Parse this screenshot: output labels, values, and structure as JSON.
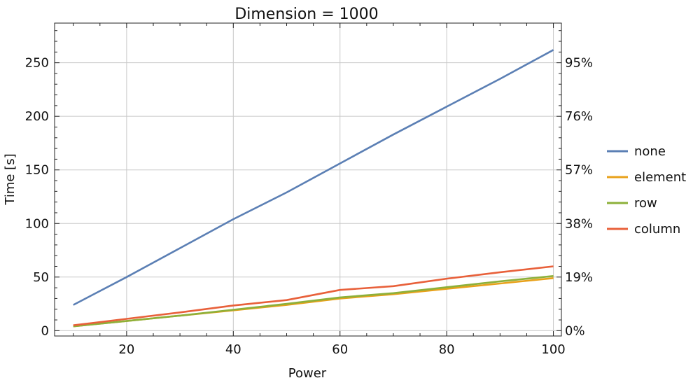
{
  "chart_data": {
    "type": "line",
    "title": "Dimension  = 1000",
    "xlabel": "Power",
    "ylabel": "Time [s]",
    "xlim": [
      6.5,
      101.5
    ],
    "ylim": [
      -5,
      287
    ],
    "x_ticks": [
      20,
      40,
      60,
      80,
      100
    ],
    "y_ticks": [
      0,
      50,
      100,
      150,
      200,
      250
    ],
    "x_tick_labels": [
      "20",
      "40",
      "60",
      "80",
      "100"
    ],
    "y_tick_labels": [
      "0",
      "50",
      "100",
      "150",
      "200",
      "250"
    ],
    "right_axis": {
      "label_positions": [
        0,
        50,
        100,
        150,
        200,
        250
      ],
      "labels": [
        "0%",
        "19%",
        "38%",
        "57%",
        "76%",
        "95%"
      ]
    },
    "grid": true,
    "legend_position": "right",
    "x": [
      10,
      20,
      30,
      40,
      50,
      60,
      70,
      80,
      90,
      100
    ],
    "series": [
      {
        "name": "none",
        "color": "#5b7fb4",
        "values": [
          24,
          50,
          77,
          104,
          129,
          156,
          183,
          209,
          235,
          262
        ]
      },
      {
        "name": "element",
        "color": "#e8a11a",
        "values": [
          4,
          9,
          14,
          19,
          24,
          30,
          34,
          39,
          44,
          49
        ]
      },
      {
        "name": "row",
        "color": "#8db03a",
        "values": [
          4,
          9,
          14,
          19.5,
          25,
          31,
          35,
          40.5,
          46,
          51
        ]
      },
      {
        "name": "column",
        "color": "#e8603a",
        "values": [
          5,
          11,
          17,
          23.5,
          28.5,
          38,
          41.5,
          48.5,
          54.5,
          60
        ]
      }
    ]
  }
}
